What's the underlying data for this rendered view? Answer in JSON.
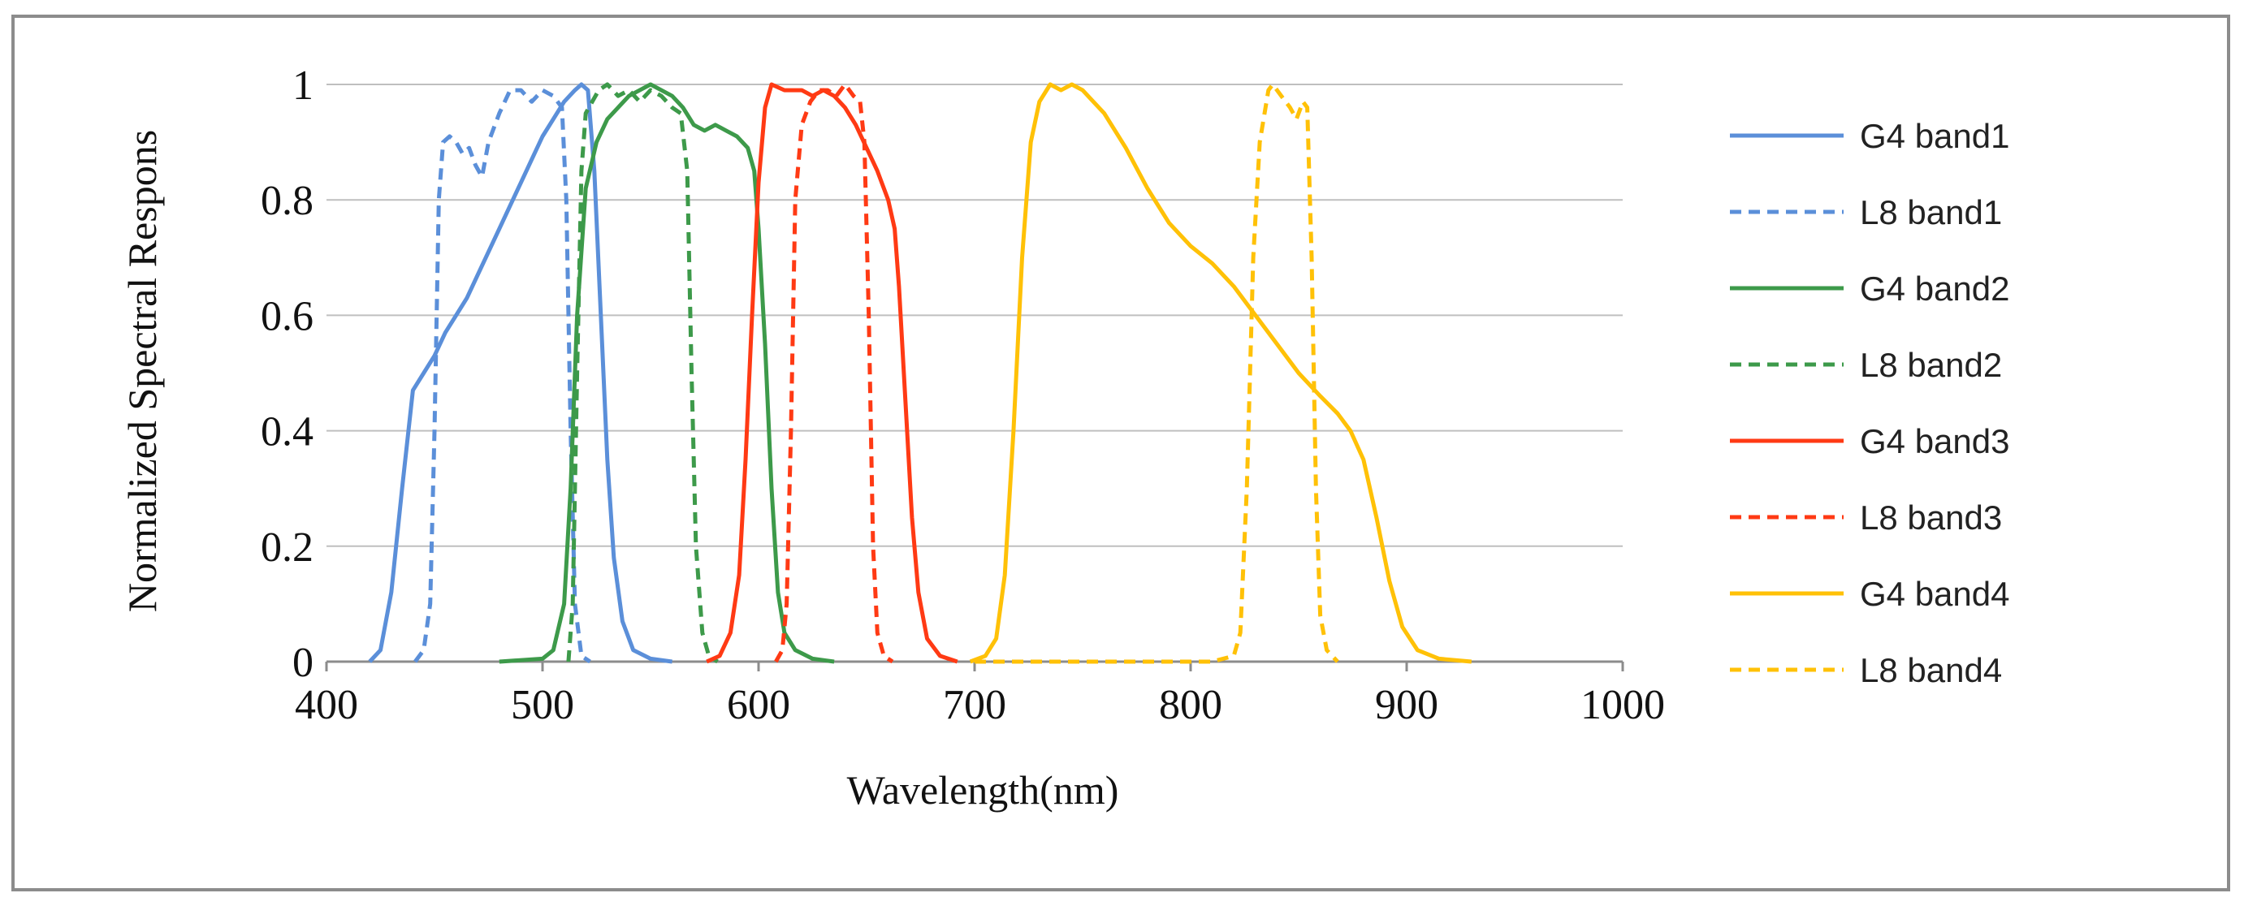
{
  "chart_data": {
    "type": "line",
    "title": "",
    "xlabel": "Wavelength(nm)",
    "ylabel": "Normalized Spectral Respons",
    "xlim": [
      400,
      1000
    ],
    "ylim": [
      0,
      1
    ],
    "xticks": [
      400,
      500,
      600,
      700,
      800,
      900,
      1000
    ],
    "yticks": [
      0,
      0.2,
      0.4,
      0.6,
      0.8,
      1
    ],
    "ytick_labels": [
      "0",
      "0.2",
      "0.4",
      "0.6",
      "0.8",
      "1"
    ],
    "grid": true,
    "legend_position": "right",
    "series": [
      {
        "name": "G4 band1",
        "color": "#5b8fd9",
        "dash": "solid",
        "points": [
          [
            420,
            0
          ],
          [
            425,
            0.02
          ],
          [
            430,
            0.12
          ],
          [
            435,
            0.3
          ],
          [
            440,
            0.47
          ],
          [
            445,
            0.5
          ],
          [
            450,
            0.53
          ],
          [
            455,
            0.57
          ],
          [
            460,
            0.6
          ],
          [
            465,
            0.63
          ],
          [
            470,
            0.67
          ],
          [
            475,
            0.71
          ],
          [
            480,
            0.75
          ],
          [
            485,
            0.79
          ],
          [
            490,
            0.83
          ],
          [
            495,
            0.87
          ],
          [
            500,
            0.91
          ],
          [
            505,
            0.94
          ],
          [
            510,
            0.97
          ],
          [
            515,
            0.99
          ],
          [
            518,
            1.0
          ],
          [
            521,
            0.99
          ],
          [
            524,
            0.85
          ],
          [
            527,
            0.6
          ],
          [
            530,
            0.35
          ],
          [
            533,
            0.18
          ],
          [
            537,
            0.07
          ],
          [
            542,
            0.02
          ],
          [
            550,
            0.005
          ],
          [
            560,
            0
          ]
        ]
      },
      {
        "name": "L8 band1",
        "color": "#5b8fd9",
        "dash": "dashed",
        "points": [
          [
            441,
            0
          ],
          [
            445,
            0.02
          ],
          [
            448,
            0.1
          ],
          [
            450,
            0.4
          ],
          [
            452,
            0.8
          ],
          [
            454,
            0.9
          ],
          [
            457,
            0.91
          ],
          [
            460,
            0.9
          ],
          [
            463,
            0.88
          ],
          [
            466,
            0.89
          ],
          [
            469,
            0.86
          ],
          [
            472,
            0.84
          ],
          [
            475,
            0.9
          ],
          [
            480,
            0.95
          ],
          [
            485,
            0.99
          ],
          [
            490,
            0.99
          ],
          [
            495,
            0.97
          ],
          [
            500,
            0.99
          ],
          [
            505,
            0.98
          ],
          [
            509,
            0.96
          ],
          [
            511,
            0.8
          ],
          [
            513,
            0.4
          ],
          [
            515,
            0.1
          ],
          [
            518,
            0.01
          ],
          [
            522,
            0
          ]
        ]
      },
      {
        "name": "G4 band2",
        "color": "#3d9a4a",
        "dash": "solid",
        "points": [
          [
            480,
            0
          ],
          [
            500,
            0.005
          ],
          [
            505,
            0.02
          ],
          [
            510,
            0.1
          ],
          [
            513,
            0.3
          ],
          [
            516,
            0.6
          ],
          [
            520,
            0.82
          ],
          [
            525,
            0.9
          ],
          [
            530,
            0.94
          ],
          [
            535,
            0.96
          ],
          [
            540,
            0.98
          ],
          [
            545,
            0.99
          ],
          [
            550,
            1.0
          ],
          [
            555,
            0.99
          ],
          [
            560,
            0.98
          ],
          [
            565,
            0.96
          ],
          [
            570,
            0.93
          ],
          [
            575,
            0.92
          ],
          [
            580,
            0.93
          ],
          [
            585,
            0.92
          ],
          [
            590,
            0.91
          ],
          [
            595,
            0.89
          ],
          [
            598,
            0.85
          ],
          [
            600,
            0.75
          ],
          [
            603,
            0.55
          ],
          [
            606,
            0.3
          ],
          [
            609,
            0.12
          ],
          [
            612,
            0.05
          ],
          [
            617,
            0.02
          ],
          [
            625,
            0.005
          ],
          [
            635,
            0
          ]
        ]
      },
      {
        "name": "L8 band2",
        "color": "#3d9a4a",
        "dash": "dashed",
        "points": [
          [
            512,
            0
          ],
          [
            514,
            0.1
          ],
          [
            516,
            0.5
          ],
          [
            518,
            0.85
          ],
          [
            520,
            0.95
          ],
          [
            523,
            0.97
          ],
          [
            526,
            0.99
          ],
          [
            530,
            1.0
          ],
          [
            535,
            0.98
          ],
          [
            540,
            0.99
          ],
          [
            545,
            0.97
          ],
          [
            550,
            0.99
          ],
          [
            555,
            0.98
          ],
          [
            560,
            0.96
          ],
          [
            564,
            0.95
          ],
          [
            567,
            0.85
          ],
          [
            569,
            0.5
          ],
          [
            571,
            0.2
          ],
          [
            574,
            0.05
          ],
          [
            577,
            0.01
          ],
          [
            581,
            0
          ]
        ]
      },
      {
        "name": "G4 band3",
        "color": "#ff3a14",
        "dash": "solid",
        "points": [
          [
            576,
            0
          ],
          [
            582,
            0.01
          ],
          [
            587,
            0.05
          ],
          [
            591,
            0.15
          ],
          [
            594,
            0.35
          ],
          [
            597,
            0.6
          ],
          [
            600,
            0.83
          ],
          [
            603,
            0.96
          ],
          [
            606,
            1.0
          ],
          [
            612,
            0.99
          ],
          [
            620,
            0.99
          ],
          [
            625,
            0.98
          ],
          [
            630,
            0.99
          ],
          [
            635,
            0.98
          ],
          [
            640,
            0.96
          ],
          [
            645,
            0.93
          ],
          [
            650,
            0.89
          ],
          [
            655,
            0.85
          ],
          [
            660,
            0.8
          ],
          [
            663,
            0.75
          ],
          [
            665,
            0.65
          ],
          [
            668,
            0.45
          ],
          [
            671,
            0.25
          ],
          [
            674,
            0.12
          ],
          [
            678,
            0.04
          ],
          [
            684,
            0.01
          ],
          [
            692,
            0
          ]
        ]
      },
      {
        "name": "L8 band3",
        "color": "#ff3a14",
        "dash": "dashed",
        "points": [
          [
            608,
            0
          ],
          [
            611,
            0.02
          ],
          [
            613,
            0.1
          ],
          [
            615,
            0.4
          ],
          [
            617,
            0.8
          ],
          [
            620,
            0.93
          ],
          [
            624,
            0.97
          ],
          [
            628,
            0.99
          ],
          [
            632,
            0.99
          ],
          [
            636,
            0.98
          ],
          [
            640,
            1.0
          ],
          [
            644,
            0.98
          ],
          [
            647,
            0.97
          ],
          [
            649,
            0.9
          ],
          [
            651,
            0.6
          ],
          [
            653,
            0.2
          ],
          [
            655,
            0.05
          ],
          [
            658,
            0.01
          ],
          [
            662,
            0
          ]
        ]
      },
      {
        "name": "G4 band4",
        "color": "#ffc107",
        "dash": "solid",
        "points": [
          [
            698,
            0
          ],
          [
            705,
            0.01
          ],
          [
            710,
            0.04
          ],
          [
            714,
            0.15
          ],
          [
            718,
            0.4
          ],
          [
            722,
            0.7
          ],
          [
            726,
            0.9
          ],
          [
            730,
            0.97
          ],
          [
            735,
            1.0
          ],
          [
            740,
            0.99
          ],
          [
            745,
            1.0
          ],
          [
            750,
            0.99
          ],
          [
            760,
            0.95
          ],
          [
            770,
            0.89
          ],
          [
            780,
            0.82
          ],
          [
            790,
            0.76
          ],
          [
            800,
            0.72
          ],
          [
            810,
            0.69
          ],
          [
            820,
            0.65
          ],
          [
            830,
            0.6
          ],
          [
            840,
            0.55
          ],
          [
            850,
            0.5
          ],
          [
            860,
            0.46
          ],
          [
            868,
            0.43
          ],
          [
            874,
            0.4
          ],
          [
            880,
            0.35
          ],
          [
            886,
            0.25
          ],
          [
            892,
            0.14
          ],
          [
            898,
            0.06
          ],
          [
            905,
            0.02
          ],
          [
            915,
            0.005
          ],
          [
            930,
            0
          ]
        ]
      },
      {
        "name": "L8 band4",
        "color": "#ffc107",
        "dash": "dashed",
        "points": [
          [
            700,
            0
          ],
          [
            760,
            0
          ],
          [
            810,
            0
          ],
          [
            820,
            0.01
          ],
          [
            823,
            0.05
          ],
          [
            826,
            0.3
          ],
          [
            829,
            0.7
          ],
          [
            832,
            0.9
          ],
          [
            836,
            0.99
          ],
          [
            838,
            1.0
          ],
          [
            842,
            0.98
          ],
          [
            846,
            0.96
          ],
          [
            849,
            0.94
          ],
          [
            852,
            0.97
          ],
          [
            854,
            0.96
          ],
          [
            856,
            0.7
          ],
          [
            858,
            0.3
          ],
          [
            860,
            0.08
          ],
          [
            863,
            0.02
          ],
          [
            868,
            0
          ]
        ]
      }
    ]
  }
}
